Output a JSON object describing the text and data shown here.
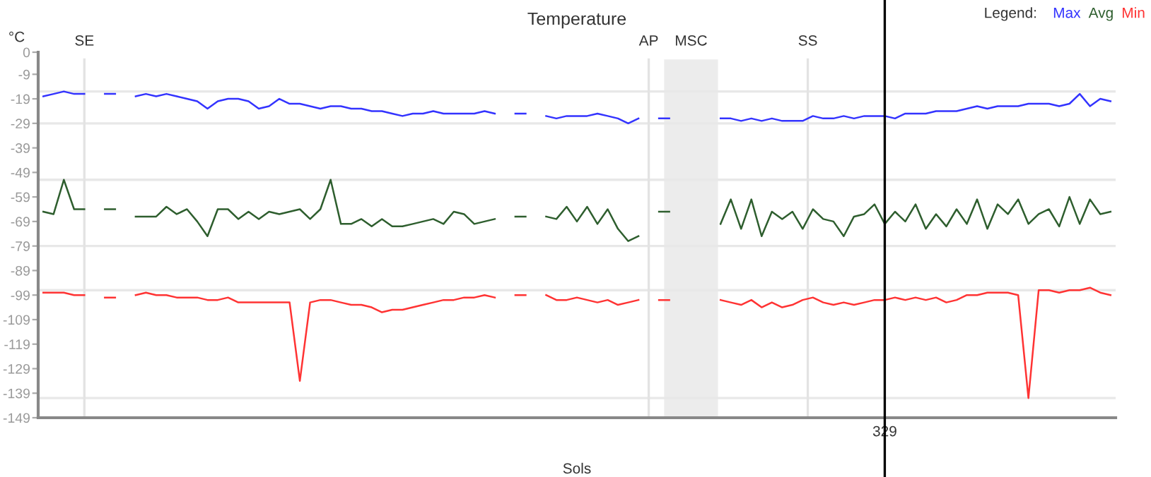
{
  "chart_data": {
    "type": "line",
    "title": "Temperature",
    "xlabel": "Sols",
    "ylabel": "°C",
    "legend_title": "Legend:",
    "legend": "top right",
    "grid": false,
    "ylim": [
      -149,
      0
    ],
    "yticks": [
      0,
      -9,
      -19,
      -29,
      -39,
      -49,
      -59,
      -69,
      -79,
      -89,
      -99,
      -109,
      -119,
      -129,
      -139,
      -149
    ],
    "categories": [
      null,
      null,
      null,
      null,
      null,
      null,
      null,
      null,
      null,
      null,
      null,
      null,
      null,
      null,
      null,
      null,
      null,
      null,
      null,
      null,
      null,
      null,
      null,
      null,
      null,
      null,
      null,
      null,
      null,
      null,
      null,
      null,
      null,
      null,
      null,
      null,
      null,
      null,
      null,
      null,
      null,
      null,
      null,
      null,
      null,
      null,
      null,
      null,
      null,
      null,
      null,
      null,
      null,
      null,
      null,
      null,
      null,
      null,
      null,
      null,
      null,
      null,
      null,
      null,
      null,
      null,
      null,
      null,
      null,
      null,
      null,
      null,
      null,
      null,
      null,
      null,
      null,
      null,
      null,
      null,
      null,
      null,
      "329",
      null,
      null,
      null,
      null,
      null,
      null,
      null,
      null,
      null,
      null,
      null,
      null,
      null,
      null,
      null,
      null,
      null,
      null,
      null,
      null,
      null,
      null
    ],
    "series": [
      {
        "name": "Max",
        "color": "#3333ff",
        "values": [
          -18,
          -17,
          -16,
          -17,
          -17,
          null,
          -17,
          -17,
          null,
          -18,
          -17,
          -18,
          -17,
          -18,
          -19,
          -20,
          -23,
          -20,
          -19,
          -19,
          -20,
          -23,
          -22,
          -19,
          -21,
          -21,
          -22,
          -23,
          -22,
          -22,
          -23,
          -23,
          -24,
          -24,
          -25,
          -26,
          -25,
          -25,
          -24,
          -25,
          -25,
          -25,
          -25,
          -24,
          -25,
          null,
          -25,
          -25,
          null,
          -26,
          -27,
          -26,
          -26,
          -26,
          -25,
          -26,
          -27,
          -29,
          -27,
          null,
          -27,
          -27,
          null,
          null,
          null,
          null,
          -27,
          -27,
          -28,
          -27,
          -28,
          -27,
          -28,
          -28,
          -28,
          -26,
          -27,
          -27,
          -26,
          -27,
          -26,
          -26,
          -26,
          -27,
          -25,
          -25,
          -25,
          -24,
          -24,
          -24,
          -23,
          -22,
          -23,
          -22,
          -22,
          -22,
          -21,
          -21,
          -21,
          -22,
          -21,
          -17,
          -22,
          -19,
          -20
        ]
      },
      {
        "name": "Avg",
        "color": "#2e5e2e",
        "values": [
          -65,
          -66,
          -52,
          -64,
          -64,
          null,
          -64,
          -64,
          null,
          -67,
          -67,
          -67,
          -63,
          -66,
          -64,
          -69,
          -75,
          -64,
          -64,
          -68,
          -65,
          -68,
          -65,
          -66,
          -65,
          -64,
          -68,
          -64,
          -52,
          -70,
          -70,
          -68,
          -71,
          -68,
          -71,
          -71,
          -70,
          -69,
          -68,
          -70,
          -65,
          -66,
          -70,
          -69,
          -68,
          null,
          -67,
          -67,
          null,
          -67,
          -68,
          -63,
          -69,
          -63,
          -70,
          -64,
          -72,
          -77,
          -75,
          null,
          -65,
          -65,
          null,
          null,
          null,
          null,
          -70,
          -60,
          -72,
          -60,
          -75,
          -65,
          -68,
          -65,
          -72,
          -64,
          -68,
          -69,
          -75,
          -67,
          -66,
          -62,
          -70,
          -65,
          -69,
          -62,
          -72,
          -66,
          -71,
          -64,
          -70,
          -60,
          -72,
          -62,
          -66,
          -60,
          -70,
          -66,
          -64,
          -71,
          -59,
          -70,
          -60,
          -66,
          -65
        ]
      },
      {
        "name": "Min",
        "color": "#ff3333",
        "values": [
          -98,
          -98,
          -98,
          -99,
          -99,
          null,
          -100,
          -100,
          null,
          -99,
          -98,
          -99,
          -99,
          -100,
          -100,
          -100,
          -101,
          -101,
          -100,
          -102,
          -102,
          -102,
          -102,
          -102,
          -102,
          -134,
          -102,
          -101,
          -101,
          -102,
          -103,
          -103,
          -104,
          -106,
          -105,
          -105,
          -104,
          -103,
          -102,
          -101,
          -101,
          -100,
          -100,
          -99,
          -100,
          null,
          -99,
          -99,
          null,
          -99,
          -101,
          -101,
          -100,
          -101,
          -102,
          -101,
          -103,
          -102,
          -101,
          null,
          -101,
          -101,
          null,
          null,
          null,
          null,
          -101,
          -102,
          -103,
          -101,
          -104,
          -102,
          -104,
          -103,
          -101,
          -100,
          -102,
          -103,
          -102,
          -103,
          -102,
          -101,
          -101,
          -100,
          -101,
          -100,
          -101,
          -100,
          -102,
          -101,
          -99,
          -99,
          -98,
          -98,
          -98,
          -99,
          -141,
          -97,
          -97,
          -98,
          -97,
          -97,
          -96,
          -98,
          -99
        ]
      }
    ],
    "annotations": [
      "SE",
      "AP",
      "MSC",
      "SS"
    ],
    "ref_lines": [
      {
        "axis": "y",
        "value": -16,
        "color": "#e8e8e8"
      },
      {
        "axis": "y",
        "value": -29,
        "color": "#e8e8e8"
      },
      {
        "axis": "y",
        "value": -52,
        "color": "#e8e8e8"
      },
      {
        "axis": "y",
        "value": -79,
        "color": "#e8e8e8"
      },
      {
        "axis": "y",
        "value": -97,
        "color": "#e8e8e8"
      },
      {
        "axis": "y",
        "value": -141,
        "color": "#e8e8e8"
      }
    ]
  }
}
